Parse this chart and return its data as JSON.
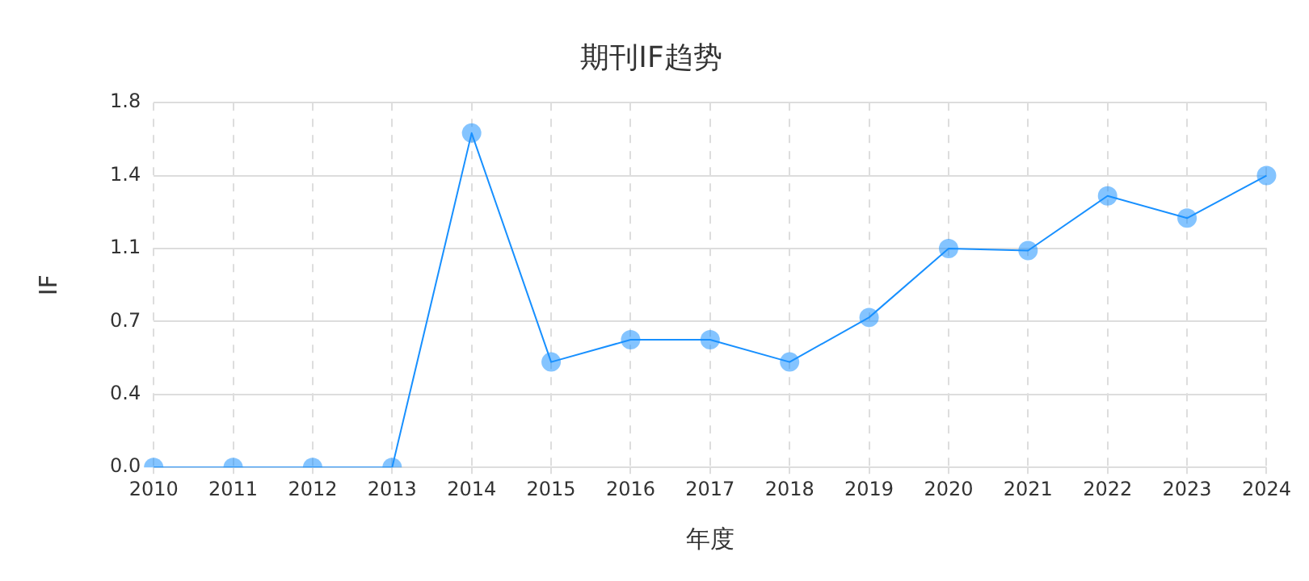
{
  "chart_data": {
    "type": "line",
    "title": "期刊IF趋势",
    "xlabel": "年度",
    "ylabel": "IF",
    "categories": [
      "2010",
      "2011",
      "2012",
      "2013",
      "2014",
      "2015",
      "2016",
      "2017",
      "2018",
      "2019",
      "2020",
      "2021",
      "2022",
      "2023",
      "2024"
    ],
    "series": [
      {
        "color": "#1890ff",
        "values": [
          0,
          0,
          0,
          0,
          1.65,
          0.52,
          0.63,
          0.63,
          0.52,
          0.74,
          1.08,
          1.07,
          1.34,
          1.23,
          1.44
        ]
      }
    ],
    "ylim": [
      0,
      1.8
    ],
    "yticks": [
      {
        "value": 0,
        "label": "0.0"
      },
      {
        "value": 0.36,
        "label": "0.4"
      },
      {
        "value": 0.72,
        "label": "0.7"
      },
      {
        "value": 1.08,
        "label": "1.1"
      },
      {
        "value": 1.44,
        "label": "1.4"
      },
      {
        "value": 1.8,
        "label": "1.8"
      }
    ],
    "grid": true,
    "legend": false,
    "marker": "circle",
    "line_style": "solid"
  }
}
